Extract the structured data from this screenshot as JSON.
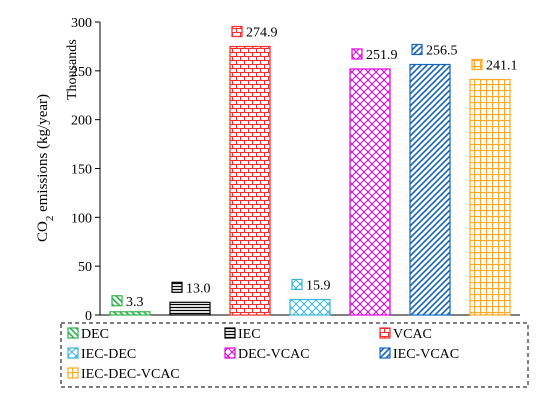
{
  "chart_data": {
    "type": "bar",
    "categories": [
      "DEC",
      "IEC",
      "VCAC",
      "IEC-DEC",
      "DEC-VCAC",
      "IEC-VCAC",
      "IEC-DEC-VCAC"
    ],
    "values": [
      3.3,
      13.0,
      274.9,
      15.9,
      251.9,
      256.5,
      241.1
    ],
    "value_labels": [
      "3.3",
      "13.0",
      "274.9",
      "15.9",
      "251.9",
      "256.5",
      "241.1"
    ],
    "title": "",
    "ylabel_main": "CO",
    "ylabel_sub": "2",
    "ylabel_rest": " emissions (kg/year)",
    "yunit": "Thousands",
    "ylim": [
      0,
      300
    ],
    "yticks": [
      0,
      50,
      100,
      150,
      200,
      250,
      300
    ],
    "grid": false,
    "legend_placement": "bottom",
    "colors": [
      "#2eb24c",
      "#000000",
      "#ff2a2a",
      "#38b5d8",
      "#e000e0",
      "#1565c0",
      "#ffa726"
    ],
    "patterns": [
      "diag-down",
      "horizontal",
      "brick",
      "cross-diag",
      "cross-diag",
      "diag-up",
      "grid"
    ]
  }
}
